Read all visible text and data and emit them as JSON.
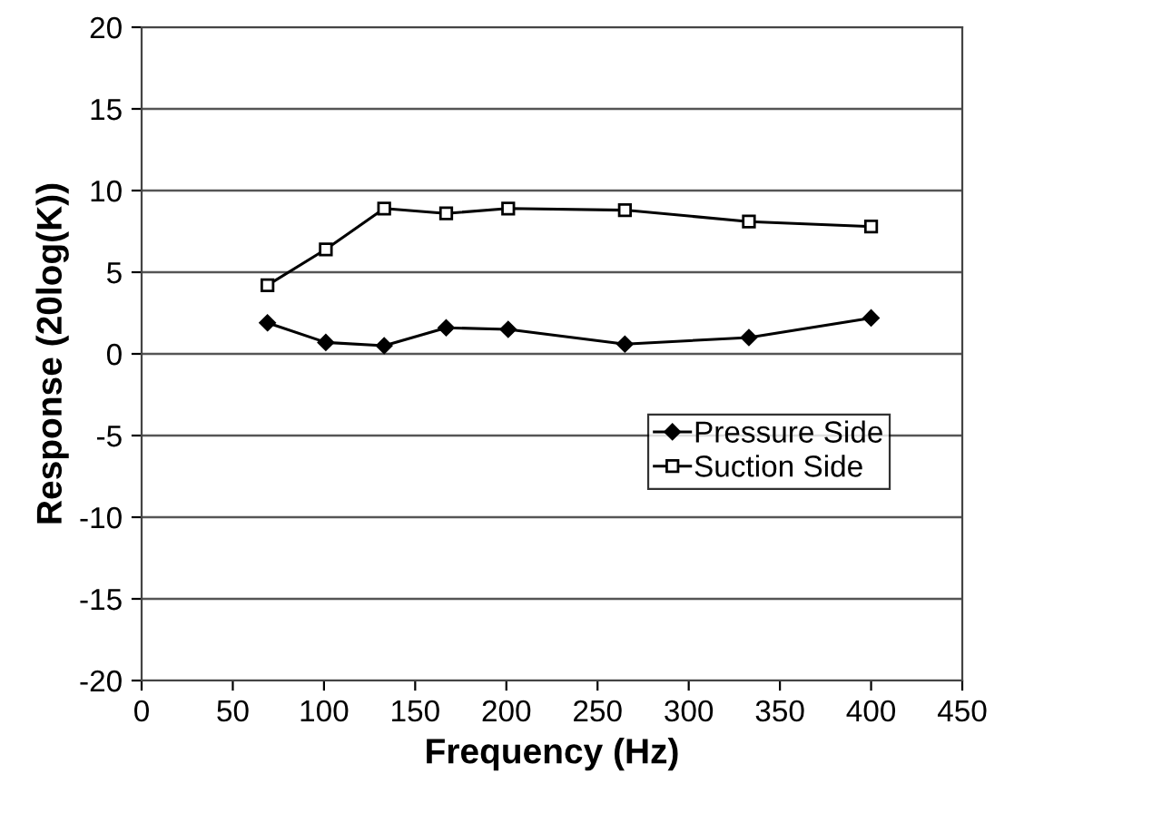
{
  "chart_data": {
    "type": "line",
    "xlabel": "Frequency (Hz)",
    "ylabel": "Response (20log(K))",
    "xlim": [
      0,
      450
    ],
    "xticks": [
      0,
      50,
      100,
      150,
      200,
      250,
      300,
      350,
      400,
      450
    ],
    "ylim": [
      -20,
      20
    ],
    "yticks": [
      -20,
      -15,
      -10,
      -5,
      0,
      5,
      10,
      15,
      20
    ],
    "grid": "y",
    "legend": "lower right",
    "line_style": "solid",
    "series": [
      {
        "name": "Pressure Side",
        "color": "#000000",
        "marker": "diamond",
        "x": [
          69,
          101,
          133,
          167,
          201,
          265,
          333,
          400
        ],
        "values": [
          1.9,
          0.7,
          0.5,
          1.6,
          1.5,
          0.6,
          1.0,
          2.2
        ]
      },
      {
        "name": "Suction Side",
        "color": "#000000",
        "marker": "square",
        "x": [
          69,
          101,
          133,
          167,
          201,
          265,
          333,
          400
        ],
        "values": [
          4.2,
          6.4,
          8.9,
          8.6,
          8.9,
          8.8,
          8.1,
          7.8
        ]
      }
    ]
  }
}
